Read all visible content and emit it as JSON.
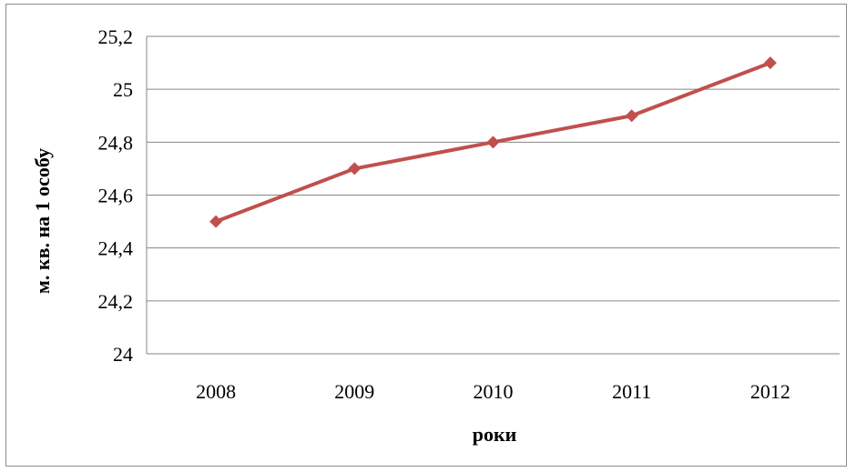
{
  "chart_data": {
    "type": "line",
    "title": "",
    "xlabel": "роки",
    "ylabel": "м. кв. на 1 особу",
    "categories": [
      "2008",
      "2009",
      "2010",
      "2011",
      "2012"
    ],
    "series": [
      {
        "values": [
          24.5,
          24.7,
          24.8,
          24.9,
          25.1
        ]
      }
    ],
    "ylim": [
      24,
      25.2
    ],
    "yticks": [
      24,
      24.2,
      24.4,
      24.6,
      24.8,
      25,
      25.2
    ],
    "ytick_labels": [
      "24",
      "24,2",
      "24,4",
      "24,6",
      "24,8",
      "25",
      "25,2"
    ],
    "grid": true,
    "legend": "none",
    "marker": "diamond",
    "colors": {
      "line": "#c0504d",
      "grid": "#868686",
      "frame": "#8c8c8c"
    }
  }
}
